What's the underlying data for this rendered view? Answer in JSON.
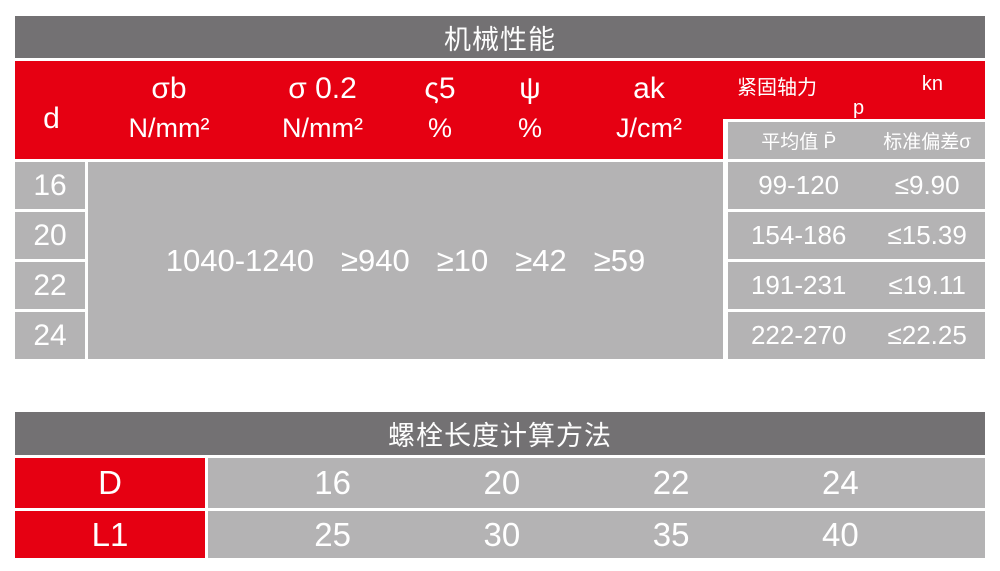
{
  "colors": {
    "red": "#e60012",
    "dark_gray": "#737173",
    "cell_gray": "#b4b3b4"
  },
  "mech": {
    "title": "机械性能",
    "header": {
      "d": "d",
      "cols": [
        {
          "symbol": "σb",
          "unit": "N/mm²"
        },
        {
          "symbol": "σ 0.2",
          "unit": "N/mm²"
        },
        {
          "symbol": "ς5",
          "unit": "%"
        },
        {
          "symbol": "ψ",
          "unit": "%"
        },
        {
          "symbol": "ak",
          "unit": "J/cm²"
        }
      ],
      "axial": {
        "label": "紧固轴力",
        "p": "p",
        "unit": "kn",
        "avg": "平均值 P̄",
        "std": "标准偏差σ"
      }
    },
    "d_values": [
      "16",
      "20",
      "22",
      "24"
    ],
    "merged_values": [
      "1040-1240",
      "≥940",
      "≥10",
      "≥42",
      "≥59"
    ],
    "axial_rows": [
      {
        "range": "99-120",
        "std": "≤9.90"
      },
      {
        "range": "154-186",
        "std": "≤15.39"
      },
      {
        "range": "191-231",
        "std": "≤19.11"
      },
      {
        "range": "222-270",
        "std": "≤22.25"
      }
    ]
  },
  "bolt": {
    "title": "螺栓长度计算方法",
    "rows": [
      {
        "label": "D",
        "values": [
          "16",
          "20",
          "22",
          "24"
        ]
      },
      {
        "label": "L1",
        "values": [
          "25",
          "30",
          "35",
          "40"
        ]
      }
    ]
  }
}
